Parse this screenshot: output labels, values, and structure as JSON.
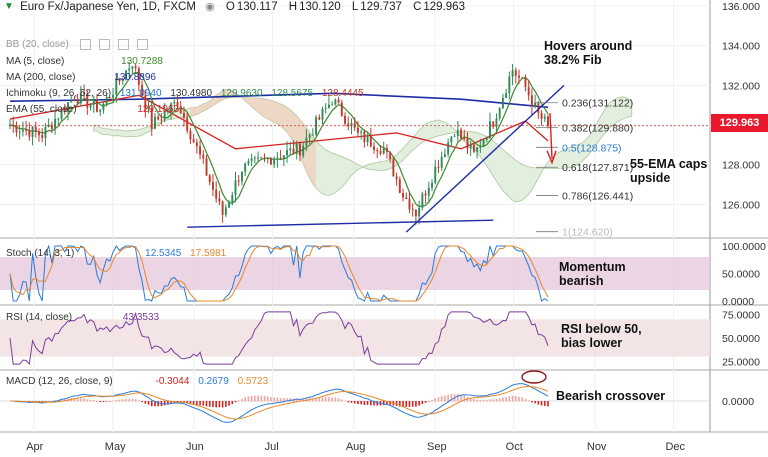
{
  "header": {
    "symbol": "Euro Fx/Japanese Yen, 1D, FXCM",
    "o_label": "O",
    "o": "130.117",
    "h_label": "H",
    "h": "130.120",
    "l_label": "L",
    "l": "129.737",
    "c_label": "C",
    "c": "129.963"
  },
  "legends": {
    "bb": "BB (20, close)",
    "ma5": "MA (5, close)",
    "ma5_val": "130.7288",
    "ma200": "MA (200, close)",
    "ma200_val": "130.8896",
    "ichimoku": "Ichimoku (9, 26, 52, 26)",
    "ichi_vals": [
      "131.0940",
      "130.4980",
      "129.9630",
      "128.5675",
      "128.4445"
    ],
    "ema": "EMA (55, close)",
    "ema_val": "129.1963",
    "stoch": "Stoch (14, 3, 1)",
    "stoch_k": "12.5345",
    "stoch_d": "17.5981",
    "rsi": "RSI (14, close)",
    "rsi_val": "43.3533",
    "macd": "MACD (12, 26, close, 9)",
    "macd_hist": "-0.3044",
    "macd_line": "0.2679",
    "macd_signal": "0.5723"
  },
  "annotations": {
    "fib38": "Hovers around\n38.2% Fib",
    "ema_caps": "55-EMA caps\nupside",
    "momentum": "Momentum\nbearish",
    "rsi_note": "RSI below 50,\nbias lower",
    "macd_note": "Bearish crossover"
  },
  "price_badge": "129.963",
  "colors": {
    "up": "#2e8b57",
    "down": "#c0392b",
    "ma200": "#1f2ea8",
    "ema55": "#d62020",
    "ma5": "#3d8b2f",
    "cloud": "#d9ead3",
    "cloud_bear": "#f4c7b4",
    "stoch_fill": "#e6c9dc",
    "rsi_fill": "#f2e2e2",
    "trend": "#1f2ea8"
  },
  "chart_data": [
    {
      "type": "candlestick",
      "title": "Euro Fx/Japanese Yen, 1D, FXCM",
      "x_ticks": [
        "Apr",
        "May",
        "Jun",
        "Jul",
        "Aug",
        "Sep",
        "Oct",
        "Nov",
        "Dec"
      ],
      "y_ticks": [
        "126.000",
        "128.000",
        "130.000",
        "132.000",
        "134.000",
        "136.000"
      ],
      "ylim": [
        124.0,
        136.0
      ],
      "waypoints": [
        {
          "day": 0,
          "price": 130.0
        },
        {
          "day": 10,
          "price": 129.5
        },
        {
          "day": 20,
          "price": 131.5
        },
        {
          "day": 28,
          "price": 130.8
        },
        {
          "day": 38,
          "price": 133.2
        },
        {
          "day": 44,
          "price": 130.0
        },
        {
          "day": 52,
          "price": 131.2
        },
        {
          "day": 60,
          "price": 128.0
        },
        {
          "day": 66,
          "price": 125.5
        },
        {
          "day": 72,
          "price": 127.8
        },
        {
          "day": 80,
          "price": 128.3
        },
        {
          "day": 90,
          "price": 128.8
        },
        {
          "day": 100,
          "price": 131.3
        },
        {
          "day": 108,
          "price": 129.5
        },
        {
          "day": 116,
          "price": 128.8
        },
        {
          "day": 122,
          "price": 126.5
        },
        {
          "day": 126,
          "price": 125.6
        },
        {
          "day": 132,
          "price": 127.8
        },
        {
          "day": 138,
          "price": 129.8
        },
        {
          "day": 144,
          "price": 128.5
        },
        {
          "day": 150,
          "price": 130.2
        },
        {
          "day": 156,
          "price": 132.8
        },
        {
          "day": 160,
          "price": 131.9
        },
        {
          "day": 164,
          "price": 130.5
        },
        {
          "day": 167,
          "price": 129.96
        }
      ],
      "fibonacci": [
        {
          "label": "0.236(131.122)",
          "value": 131.122
        },
        {
          "label": "0.382(129.880)",
          "value": 129.88
        },
        {
          "label": "0.5(128.875)",
          "value": 128.875
        },
        {
          "label": "0.618(127.871)",
          "value": 127.871
        },
        {
          "label": "0.786(126.441)",
          "value": 126.441
        },
        {
          "label": "1(124.620)",
          "value": 124.62
        }
      ],
      "ma200_points": [
        [
          0,
          131.2
        ],
        [
          40,
          131.3
        ],
        [
          100,
          131.6
        ],
        [
          140,
          131.3
        ],
        [
          167,
          130.89
        ]
      ],
      "ema55_points": [
        [
          0,
          130.3
        ],
        [
          40,
          131.5
        ],
        [
          70,
          128.8
        ],
        [
          120,
          129.6
        ],
        [
          140,
          128.8
        ],
        [
          160,
          130.2
        ],
        [
          167,
          129.2
        ]
      ],
      "support_line": [
        [
          60,
          124.85
        ],
        [
          150,
          125.2
        ]
      ],
      "trend_line": [
        [
          123,
          124.6
        ],
        [
          167,
          132.0
        ]
      ]
    },
    {
      "type": "line",
      "title": "Stoch (14, 3, 1)",
      "y_ticks": [
        "0.0000",
        "50.0000",
        "100.0000"
      ],
      "ylim": [
        0,
        100
      ],
      "band": [
        20,
        80
      ],
      "k_last": 12.5345,
      "d_last": 17.5981
    },
    {
      "type": "line",
      "title": "RSI (14, close)",
      "y_ticks": [
        "25.0000",
        "50.0000",
        "75.0000"
      ],
      "ylim": [
        20,
        80
      ],
      "band": [
        30,
        70
      ],
      "last": 43.3533
    },
    {
      "type": "bar",
      "title": "MACD (12, 26, close, 9)",
      "y_ticks": [
        "0.0000"
      ],
      "hist_last": -0.3044,
      "macd_last": 0.2679,
      "signal_last": 0.5723
    }
  ]
}
